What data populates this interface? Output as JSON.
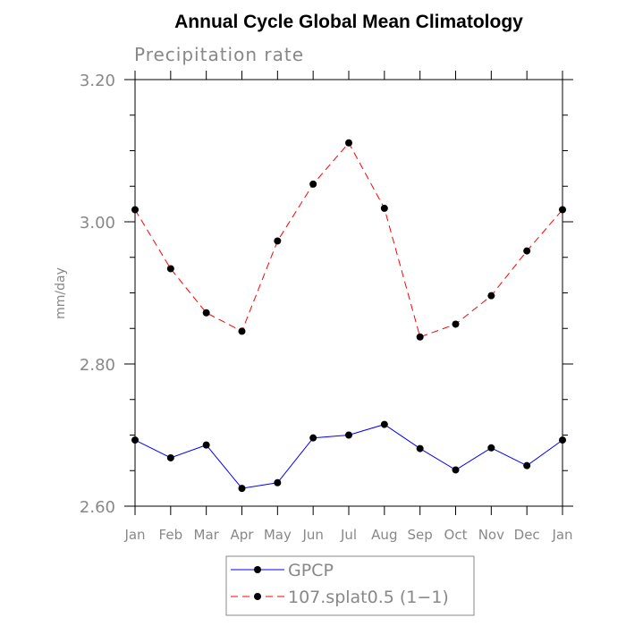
{
  "chart_data": {
    "type": "line",
    "title": "Annual Cycle Global Mean Climatology",
    "subtitle": "Precipitation rate",
    "ylabel": "mm/day",
    "xlabel": "",
    "ylim": [
      2.6,
      3.2
    ],
    "yticks": [
      "2.60",
      "2.80",
      "3.00",
      "3.20"
    ],
    "categories": [
      "Jan",
      "Feb",
      "Mar",
      "Apr",
      "May",
      "Jun",
      "Jul",
      "Aug",
      "Sep",
      "Oct",
      "Nov",
      "Dec",
      "Jan"
    ],
    "grid": false,
    "legend_position": "bottom",
    "series": [
      {
        "name": "GPCP",
        "color": "#0000ff",
        "dash": "solid",
        "values": [
          2.693,
          2.668,
          2.686,
          2.625,
          2.633,
          2.696,
          2.7,
          2.715,
          2.681,
          2.651,
          2.682,
          2.657,
          2.693
        ]
      },
      {
        "name": "107.splat0.5 (1−1)",
        "color": "#ff0000",
        "dash": "dashed",
        "values": [
          3.017,
          2.934,
          2.872,
          2.846,
          2.973,
          3.053,
          3.111,
          3.019,
          2.838,
          2.856,
          2.896,
          2.959,
          3.017
        ]
      }
    ]
  }
}
